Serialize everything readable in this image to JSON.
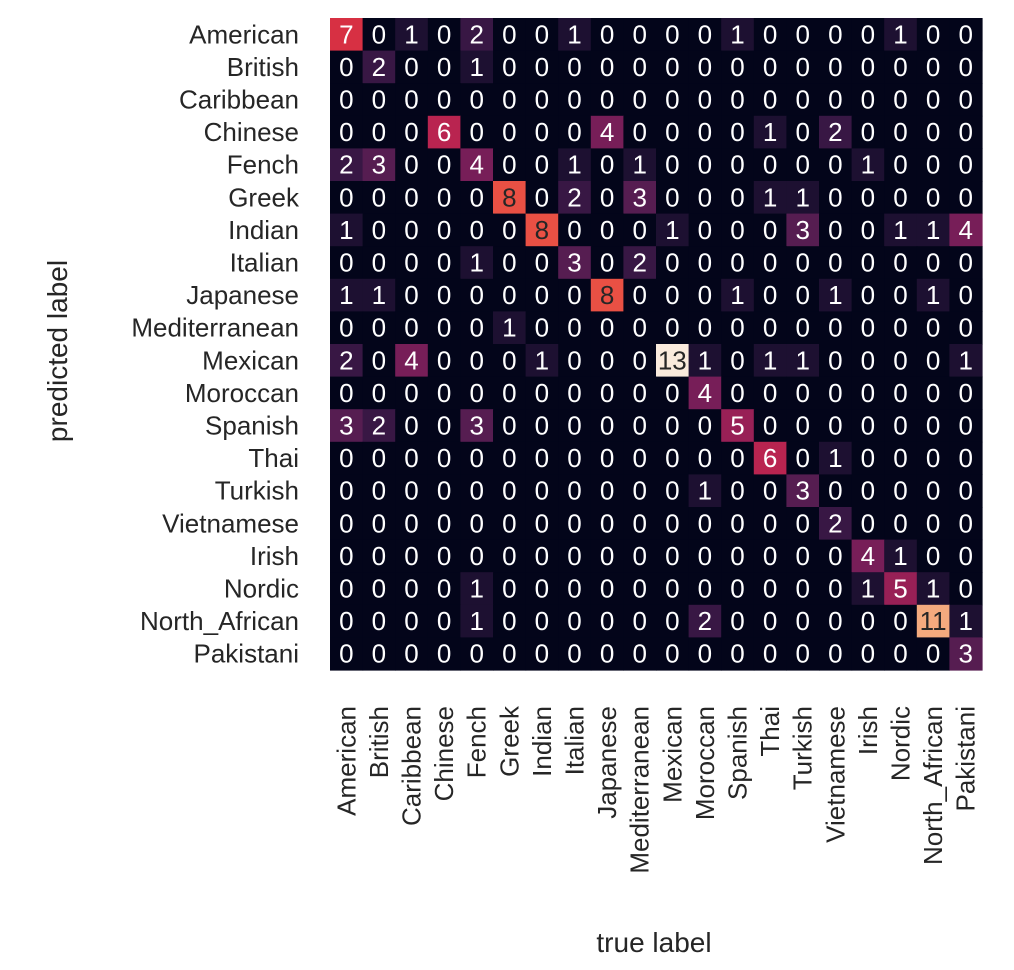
{
  "chart_data": {
    "type": "heatmap",
    "xlabel": "true label",
    "ylabel": "predicted label",
    "x_categories": [
      "American",
      "British",
      "Caribbean",
      "Chinese",
      "Fench",
      "Greek",
      "Indian",
      "Italian",
      "Japanese",
      "Mediterranean",
      "Mexican",
      "Moroccan",
      "Spanish",
      "Thai",
      "Turkish",
      "Vietnamese",
      "Irish",
      "Nordic",
      "North_African",
      "Pakistani"
    ],
    "y_categories": [
      "American",
      "British",
      "Caribbean",
      "Chinese",
      "Fench",
      "Greek",
      "Indian",
      "Italian",
      "Japanese",
      "Mediterranean",
      "Mexican",
      "Moroccan",
      "Spanish",
      "Thai",
      "Turkish",
      "Vietnamese",
      "Irish",
      "Nordic",
      "North_African",
      "Pakistani"
    ],
    "values": [
      [
        7,
        0,
        1,
        0,
        2,
        0,
        0,
        1,
        0,
        0,
        0,
        0,
        1,
        0,
        0,
        0,
        0,
        1,
        0,
        0
      ],
      [
        0,
        2,
        0,
        0,
        1,
        0,
        0,
        0,
        0,
        0,
        0,
        0,
        0,
        0,
        0,
        0,
        0,
        0,
        0,
        0
      ],
      [
        0,
        0,
        0,
        0,
        0,
        0,
        0,
        0,
        0,
        0,
        0,
        0,
        0,
        0,
        0,
        0,
        0,
        0,
        0,
        0
      ],
      [
        0,
        0,
        0,
        6,
        0,
        0,
        0,
        0,
        4,
        0,
        0,
        0,
        0,
        1,
        0,
        2,
        0,
        0,
        0,
        0
      ],
      [
        2,
        3,
        0,
        0,
        4,
        0,
        0,
        1,
        0,
        1,
        0,
        0,
        0,
        0,
        0,
        0,
        1,
        0,
        0,
        0
      ],
      [
        0,
        0,
        0,
        0,
        0,
        8,
        0,
        2,
        0,
        3,
        0,
        0,
        0,
        1,
        1,
        0,
        0,
        0,
        0,
        0
      ],
      [
        1,
        0,
        0,
        0,
        0,
        0,
        8,
        0,
        0,
        0,
        1,
        0,
        0,
        0,
        3,
        0,
        0,
        1,
        1,
        4
      ],
      [
        0,
        0,
        0,
        0,
        1,
        0,
        0,
        3,
        0,
        2,
        0,
        0,
        0,
        0,
        0,
        0,
        0,
        0,
        0,
        0
      ],
      [
        1,
        1,
        0,
        0,
        0,
        0,
        0,
        0,
        8,
        0,
        0,
        0,
        1,
        0,
        0,
        1,
        0,
        0,
        1,
        0
      ],
      [
        0,
        0,
        0,
        0,
        0,
        1,
        0,
        0,
        0,
        0,
        0,
        0,
        0,
        0,
        0,
        0,
        0,
        0,
        0,
        0
      ],
      [
        2,
        0,
        4,
        0,
        0,
        0,
        1,
        0,
        0,
        0,
        13,
        1,
        0,
        1,
        1,
        0,
        0,
        0,
        0,
        1
      ],
      [
        0,
        0,
        0,
        0,
        0,
        0,
        0,
        0,
        0,
        0,
        0,
        4,
        0,
        0,
        0,
        0,
        0,
        0,
        0,
        0
      ],
      [
        3,
        2,
        0,
        0,
        3,
        0,
        0,
        0,
        0,
        0,
        0,
        0,
        5,
        0,
        0,
        0,
        0,
        0,
        0,
        0
      ],
      [
        0,
        0,
        0,
        0,
        0,
        0,
        0,
        0,
        0,
        0,
        0,
        0,
        0,
        6,
        0,
        1,
        0,
        0,
        0,
        0
      ],
      [
        0,
        0,
        0,
        0,
        0,
        0,
        0,
        0,
        0,
        0,
        0,
        1,
        0,
        0,
        3,
        0,
        0,
        0,
        0,
        0
      ],
      [
        0,
        0,
        0,
        0,
        0,
        0,
        0,
        0,
        0,
        0,
        0,
        0,
        0,
        0,
        0,
        2,
        0,
        0,
        0,
        0
      ],
      [
        0,
        0,
        0,
        0,
        0,
        0,
        0,
        0,
        0,
        0,
        0,
        0,
        0,
        0,
        0,
        0,
        4,
        1,
        0,
        0
      ],
      [
        0,
        0,
        0,
        0,
        1,
        0,
        0,
        0,
        0,
        0,
        0,
        0,
        0,
        0,
        0,
        0,
        1,
        5,
        1,
        0
      ],
      [
        0,
        0,
        0,
        0,
        1,
        0,
        0,
        0,
        0,
        0,
        0,
        2,
        0,
        0,
        0,
        0,
        0,
        0,
        11,
        1
      ],
      [
        0,
        0,
        0,
        0,
        0,
        0,
        0,
        0,
        0,
        0,
        0,
        0,
        0,
        0,
        0,
        0,
        0,
        0,
        0,
        3
      ]
    ],
    "vmin": 0,
    "vmax": 13,
    "colormap": "rocket",
    "grid": false,
    "colorbar": false,
    "colors": {
      "background": "#ffffff",
      "text_dark_cell": "#ffffff",
      "text_light_cell": "#262626",
      "axis_text": "#262626"
    }
  }
}
